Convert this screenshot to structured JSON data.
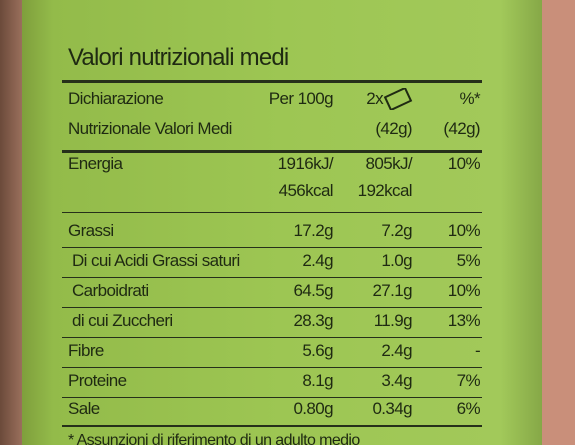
{
  "title": "Valori nutrizionali medi",
  "table": {
    "header": [
      [
        "Dichiarazione",
        "Nutrizionale Valori Medi"
      ],
      [
        "Per 100g"
      ],
      [
        "2x",
        "(42g)"
      ],
      [
        "%*",
        "(42g)"
      ]
    ],
    "rows": [
      [
        [
          "Energia"
        ],
        [
          "1916kJ/",
          "456kcal"
        ],
        [
          "805kJ/",
          "192kcal"
        ],
        [
          "10%"
        ]
      ],
      [
        [
          "Grassi"
        ],
        [
          "17.2g"
        ],
        [
          "7.2g"
        ],
        [
          "10%"
        ]
      ],
      [
        [
          "Di cui Acidi Grassi saturi"
        ],
        [
          "2.4g"
        ],
        [
          "1.0g"
        ],
        [
          "5%"
        ]
      ],
      [
        [
          "Carboidrati"
        ],
        [
          "64.5g"
        ],
        [
          "27.1g"
        ],
        [
          "10%"
        ]
      ],
      [
        [
          "di cui Zuccheri"
        ],
        [
          "28.3g"
        ],
        [
          "11.9g"
        ],
        [
          "13%"
        ]
      ],
      [
        [
          "Fibre"
        ],
        [
          "5.6g"
        ],
        [
          "2.4g"
        ],
        [
          "-"
        ]
      ],
      [
        [
          "Proteine"
        ],
        [
          "8.1g"
        ],
        [
          "3.4g"
        ],
        [
          "7%"
        ]
      ],
      [
        [
          "Sale"
        ],
        [
          "0.80g"
        ],
        [
          "0.34g"
        ],
        [
          "6%"
        ]
      ]
    ]
  },
  "footnote": "* Assunzioni di riferimento di un adulto medio"
}
